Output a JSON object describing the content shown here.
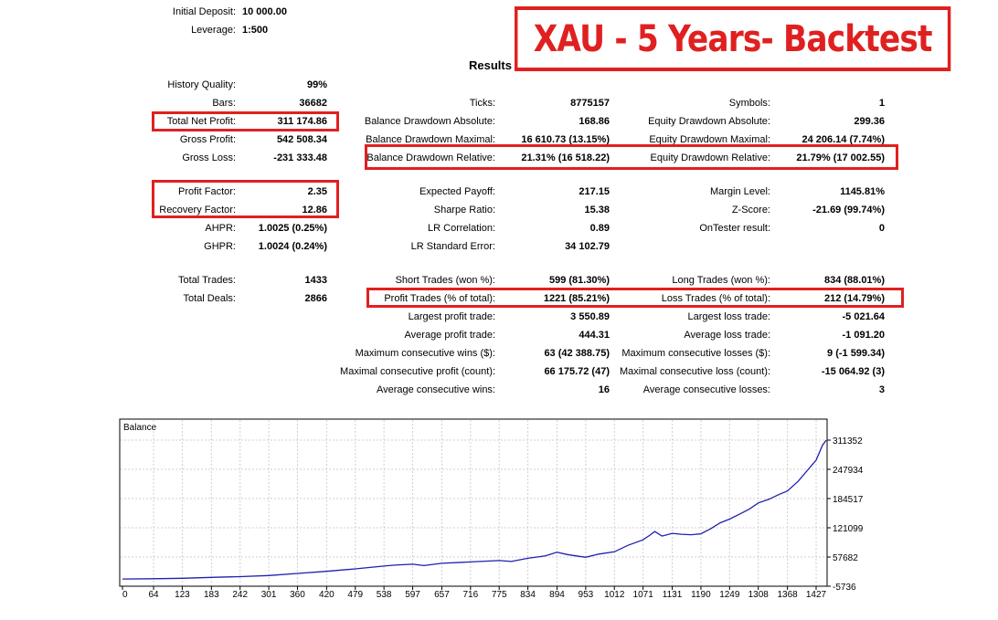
{
  "banner": "XAU - 5 Years- Backtest",
  "results_title": "Results",
  "header_rows": [
    {
      "label": "Initial Deposit:",
      "value": "10 000.00"
    },
    {
      "label": "Leverage:",
      "value": "1:500"
    }
  ],
  "col1": [
    {
      "label": "History Quality:",
      "value": "99%"
    },
    {
      "label": "Bars:",
      "value": "36682"
    },
    {
      "label": "Total Net Profit:",
      "value": "311 174.86"
    },
    {
      "label": "Gross Profit:",
      "value": "542 508.34"
    },
    {
      "label": "Gross Loss:",
      "value": "-231 333.48"
    },
    {
      "label": "Profit Factor:",
      "value": "2.35"
    },
    {
      "label": "Recovery Factor:",
      "value": "12.86"
    },
    {
      "label": "AHPR:",
      "value": "1.0025 (0.25%)"
    },
    {
      "label": "GHPR:",
      "value": "1.0024 (0.24%)"
    },
    {
      "label": "Total Trades:",
      "value": "1433"
    },
    {
      "label": "Total Deals:",
      "value": "2866"
    }
  ],
  "col2": [
    {
      "label": "Ticks:",
      "value": "8775157"
    },
    {
      "label": "Balance Drawdown Absolute:",
      "value": "168.86"
    },
    {
      "label": "Balance Drawdown Maximal:",
      "value": "16 610.73 (13.15%)"
    },
    {
      "label": "Balance Drawdown Relative:",
      "value": "21.31% (16 518.22)"
    },
    {
      "label": "Expected Payoff:",
      "value": "217.15"
    },
    {
      "label": "Sharpe Ratio:",
      "value": "15.38"
    },
    {
      "label": "LR Correlation:",
      "value": "0.89"
    },
    {
      "label": "LR Standard Error:",
      "value": "34 102.79"
    },
    {
      "label": "Short Trades (won %):",
      "value": "599 (81.30%)"
    },
    {
      "label": "Profit Trades (% of total):",
      "value": "1221 (85.21%)"
    },
    {
      "label": "Largest profit trade:",
      "value": "3 550.89"
    },
    {
      "label": "Average profit trade:",
      "value": "444.31"
    },
    {
      "label": "Maximum consecutive wins ($):",
      "value": "63 (42 388.75)"
    },
    {
      "label": "Maximal consecutive profit (count):",
      "value": "66 175.72 (47)"
    },
    {
      "label": "Average consecutive wins:",
      "value": "16"
    }
  ],
  "col3": [
    {
      "label": "Symbols:",
      "value": "1"
    },
    {
      "label": "Equity Drawdown Absolute:",
      "value": "299.36"
    },
    {
      "label": "Equity Drawdown Maximal:",
      "value": "24 206.14 (7.74%)"
    },
    {
      "label": "Equity Drawdown Relative:",
      "value": "21.79% (17 002.55)"
    },
    {
      "label": "Margin Level:",
      "value": "1145.81%"
    },
    {
      "label": "Z-Score:",
      "value": "-21.69 (99.74%)"
    },
    {
      "label": "OnTester result:",
      "value": "0"
    },
    {
      "label": "Long Trades (won %):",
      "value": "834 (88.01%)"
    },
    {
      "label": "Loss Trades (% of total):",
      "value": "212 (14.79%)"
    },
    {
      "label": "Largest loss trade:",
      "value": "-5 021.64"
    },
    {
      "label": "Average loss trade:",
      "value": "-1 091.20"
    },
    {
      "label": "Maximum consecutive losses ($):",
      "value": "9 (-1 599.34)"
    },
    {
      "label": "Maximal consecutive loss (count):",
      "value": "-15 064.92 (3)"
    },
    {
      "label": "Average consecutive losses:",
      "value": "3"
    }
  ],
  "colors": {
    "highlight": "#e02020",
    "series": "#1f1fb0",
    "grid": "#cfcfcf"
  },
  "chart_data": {
    "type": "line",
    "title": "Balance",
    "xlabel": "",
    "ylabel": "",
    "xlim": [
      0,
      1456
    ],
    "ylim": [
      -5736,
      320000
    ],
    "x_ticks": [
      0,
      64,
      123,
      183,
      242,
      301,
      360,
      420,
      479,
      538,
      597,
      657,
      716,
      775,
      834,
      894,
      953,
      1012,
      1071,
      1131,
      1190,
      1249,
      1308,
      1368,
      1427
    ],
    "y_ticks": [
      311352,
      247934,
      184517,
      121099,
      57682,
      -5736
    ],
    "grid": true,
    "series": [
      {
        "name": "",
        "x": [
          0,
          64,
          123,
          183,
          242,
          301,
          360,
          420,
          479,
          538,
          560,
          597,
          620,
          657,
          716,
          775,
          800,
          834,
          870,
          894,
          915,
          940,
          953,
          980,
          1012,
          1040,
          1071,
          1085,
          1095,
          1110,
          1131,
          1150,
          1170,
          1190,
          1210,
          1230,
          1249,
          1270,
          1290,
          1308,
          1330,
          1350,
          1368,
          1390,
          1410,
          1427,
          1440,
          1450
        ],
        "y": [
          10000,
          10500,
          11500,
          13500,
          15000,
          17500,
          22000,
          26500,
          32000,
          38000,
          40000,
          42000,
          39000,
          44000,
          47000,
          50000,
          48000,
          55000,
          60000,
          68000,
          63000,
          59000,
          57000,
          64000,
          69000,
          83000,
          95000,
          105000,
          113000,
          103000,
          109000,
          107000,
          106000,
          108000,
          119000,
          132000,
          140000,
          151000,
          162000,
          175000,
          183000,
          193000,
          201000,
          222000,
          247000,
          268000,
          300000,
          311174
        ]
      }
    ]
  }
}
